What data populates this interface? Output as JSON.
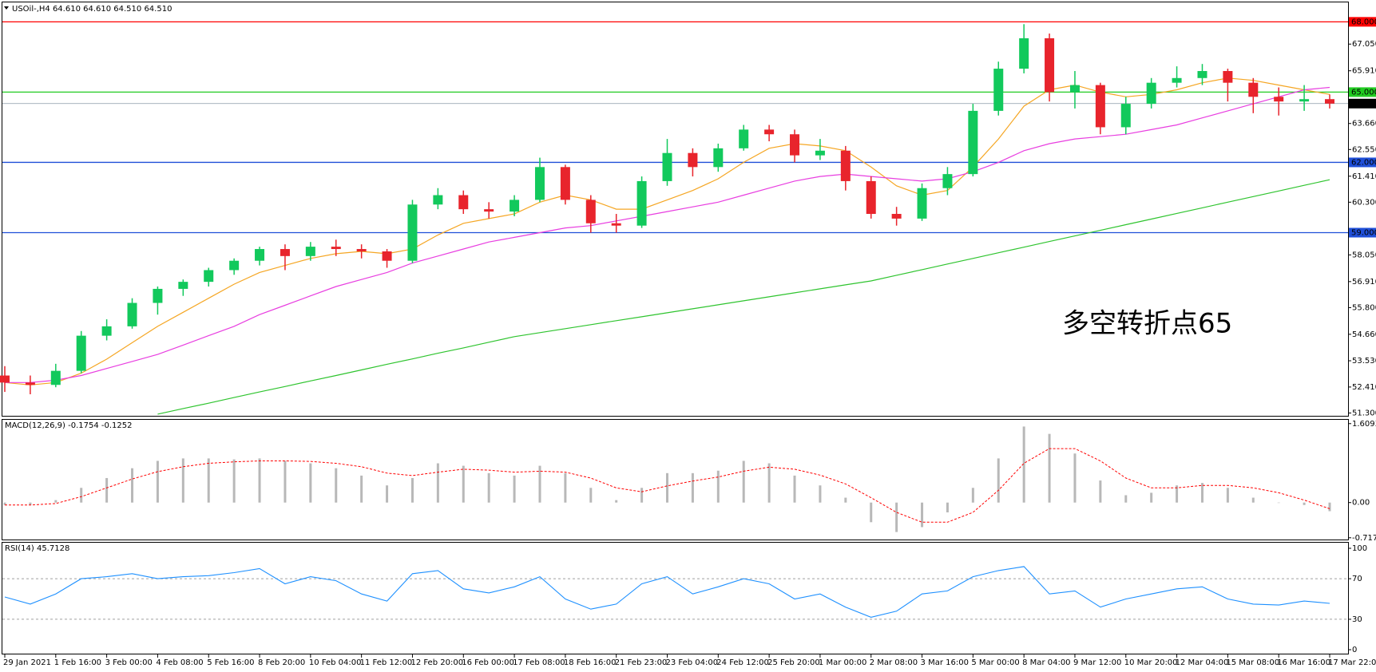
{
  "chart_data": [
    {
      "type": "candlestick",
      "title": "USOil-,H4  64.610 64.610 64.510 64.510",
      "annotation": "多空转折点65",
      "annotation_color": "#e8242c",
      "categories": [
        "29 Jan 2021",
        null,
        "1 Feb 16:00",
        null,
        "3 Feb 00:00",
        null,
        "4 Feb 08:00",
        null,
        "5 Feb 16:00",
        null,
        "8 Feb 20:00",
        null,
        "10 Feb 04:00",
        null,
        "11 Feb 12:00",
        null,
        "12 Feb 20:00",
        null,
        "16 Feb 00:00",
        null,
        "17 Feb 08:00",
        null,
        "18 Feb 16:00",
        null,
        "21 Feb 23:00",
        null,
        "23 Feb 04:00",
        null,
        "24 Feb 12:00",
        null,
        "25 Feb 20:00",
        null,
        "1 Mar 00:00",
        null,
        "2 Mar 08:00",
        null,
        "3 Mar 16:00",
        null,
        "5 Mar 00:00",
        null,
        "8 Mar 04:00",
        null,
        "9 Mar 12:00",
        null,
        "10 Mar 20:00",
        null,
        "12 Mar 04:00",
        null,
        "15 Mar 08:00",
        null,
        "16 Mar 16:00",
        null,
        "17 Mar 22:00"
      ],
      "open": [
        52.9,
        52.6,
        52.5,
        53.1,
        54.6,
        55.0,
        56.0,
        56.6,
        56.9,
        57.4,
        57.8,
        58.3,
        58.0,
        58.4,
        58.3,
        58.2,
        57.8,
        60.2,
        60.6,
        60.0,
        59.9,
        60.4,
        61.8,
        60.4,
        59.4,
        59.3,
        61.2,
        62.4,
        61.8,
        62.6,
        63.4,
        63.2,
        62.3,
        62.5,
        61.2,
        59.8,
        59.6,
        60.9,
        61.5,
        64.2,
        66.0,
        67.3,
        65.0,
        65.3,
        63.5,
        64.5,
        65.4,
        65.6,
        65.9,
        65.4,
        64.8,
        64.6,
        64.7
      ],
      "high": [
        53.3,
        52.9,
        53.4,
        54.8,
        55.3,
        56.2,
        56.7,
        57.0,
        57.5,
        57.9,
        58.4,
        58.5,
        58.6,
        58.7,
        58.5,
        58.3,
        60.4,
        60.9,
        60.8,
        60.3,
        60.6,
        62.2,
        61.9,
        60.6,
        59.8,
        61.4,
        63.0,
        62.6,
        62.8,
        63.6,
        63.6,
        63.4,
        63.0,
        62.7,
        61.4,
        60.1,
        61.1,
        61.8,
        64.5,
        66.3,
        67.9,
        67.5,
        65.9,
        65.4,
        64.8,
        65.6,
        66.1,
        66.2,
        66.0,
        65.6,
        65.2,
        65.3,
        64.9
      ],
      "low": [
        52.2,
        52.1,
        52.4,
        53.0,
        54.4,
        54.9,
        55.5,
        56.3,
        56.7,
        57.2,
        57.6,
        57.4,
        57.8,
        58.0,
        57.9,
        57.5,
        57.7,
        60.0,
        59.8,
        59.6,
        59.7,
        60.3,
        60.2,
        59.0,
        59.0,
        59.2,
        61.0,
        61.4,
        61.6,
        62.5,
        62.9,
        62.0,
        62.1,
        60.8,
        59.6,
        59.3,
        59.5,
        60.6,
        61.4,
        64.0,
        65.8,
        64.6,
        64.3,
        63.2,
        63.2,
        64.3,
        65.2,
        65.3,
        64.6,
        64.1,
        64.0,
        64.2,
        64.3
      ],
      "close": [
        52.6,
        52.5,
        53.1,
        54.6,
        55.0,
        56.0,
        56.6,
        56.9,
        57.4,
        57.8,
        58.3,
        58.0,
        58.4,
        58.3,
        58.2,
        57.8,
        60.2,
        60.6,
        60.0,
        59.9,
        60.4,
        61.8,
        60.4,
        59.4,
        59.3,
        61.2,
        62.4,
        61.8,
        62.6,
        63.4,
        63.2,
        62.3,
        62.5,
        61.2,
        59.8,
        59.6,
        60.9,
        61.5,
        64.2,
        66.0,
        67.3,
        65.0,
        65.3,
        63.5,
        64.5,
        65.4,
        65.6,
        65.9,
        65.4,
        64.8,
        64.6,
        64.7,
        64.51
      ],
      "up_color": "#12c95c",
      "down_color": "#e8242c",
      "series": [
        {
          "color": "#f5a623",
          "values": [
            52.6,
            52.5,
            52.6,
            53.0,
            53.6,
            54.3,
            55.0,
            55.6,
            56.2,
            56.8,
            57.3,
            57.6,
            57.9,
            58.1,
            58.2,
            58.1,
            58.3,
            58.9,
            59.4,
            59.6,
            59.8,
            60.3,
            60.6,
            60.4,
            60.0,
            60.0,
            60.4,
            60.8,
            61.3,
            62.0,
            62.6,
            62.8,
            62.7,
            62.5,
            61.8,
            61.0,
            60.6,
            60.8,
            61.8,
            63.0,
            64.4,
            65.1,
            65.3,
            65.0,
            64.8,
            64.9,
            65.1,
            65.4,
            65.6,
            65.5,
            65.3,
            65.1,
            64.9
          ]
        },
        {
          "color": "#e83ee0",
          "values": [
            52.6,
            52.6,
            52.7,
            52.9,
            53.2,
            53.5,
            53.8,
            54.2,
            54.6,
            55.0,
            55.5,
            55.9,
            56.3,
            56.7,
            57.0,
            57.3,
            57.7,
            58.0,
            58.3,
            58.6,
            58.8,
            59.0,
            59.2,
            59.3,
            59.5,
            59.7,
            59.9,
            60.1,
            60.3,
            60.6,
            60.9,
            61.2,
            61.4,
            61.5,
            61.4,
            61.3,
            61.2,
            61.3,
            61.6,
            62.0,
            62.5,
            62.8,
            63.0,
            63.1,
            63.2,
            63.4,
            63.6,
            63.9,
            64.2,
            64.5,
            64.8,
            65.1,
            65.2
          ]
        },
        {
          "color": "#2fc42f",
          "values": [
            null,
            null,
            null,
            null,
            null,
            null,
            51.25,
            51.49,
            51.72,
            51.96,
            52.2,
            52.43,
            52.67,
            52.9,
            53.14,
            53.38,
            53.61,
            53.85,
            54.08,
            54.32,
            54.56,
            54.73,
            54.9,
            55.07,
            55.24,
            55.41,
            55.58,
            55.75,
            55.92,
            56.09,
            56.26,
            56.43,
            56.6,
            56.77,
            56.94,
            57.18,
            57.42,
            57.66,
            57.9,
            58.14,
            58.38,
            58.62,
            58.86,
            59.1,
            59.34,
            59.58,
            59.82,
            60.06,
            60.3,
            60.54,
            60.78,
            61.02,
            61.26
          ]
        }
      ],
      "ylim": [
        51.18,
        68.83
      ],
      "yticks": [
        {
          "value": 67.05,
          "label": "67.050"
        },
        {
          "value": 65.91,
          "label": "65.910"
        },
        {
          "value": 63.66,
          "label": "63.660"
        },
        {
          "value": 62.55,
          "label": "62.550"
        },
        {
          "value": 61.41,
          "label": "61.410"
        },
        {
          "value": 60.3,
          "label": "60.300"
        },
        {
          "value": 58.05,
          "label": "58.050"
        },
        {
          "value": 56.91,
          "label": "56.910"
        },
        {
          "value": 55.8,
          "label": "55.800"
        },
        {
          "value": 54.66,
          "label": "54.660"
        },
        {
          "value": 53.53,
          "label": "53.530"
        },
        {
          "value": 52.41,
          "label": "52.410"
        },
        {
          "value": 51.3,
          "label": "51.300"
        }
      ],
      "levels": [
        {
          "value": 68,
          "label": "68.000",
          "color": "#ff0000"
        },
        {
          "value": 65,
          "label": "65.000",
          "color": "#22cc22"
        },
        {
          "value": 62,
          "label": "62.000",
          "color": "#1f4fd8"
        },
        {
          "value": 59,
          "label": "59.000",
          "color": "#1f4fd8"
        }
      ],
      "price_line": {
        "value": 64.51,
        "label": "64.510",
        "color": "#8a9aa8"
      }
    },
    {
      "type": "macd",
      "title": "MACD(12,26,9) -0.1754 -0.1252",
      "histogram": [
        -0.05,
        -0.05,
        0.05,
        0.3,
        0.5,
        0.7,
        0.85,
        0.9,
        0.9,
        0.88,
        0.9,
        0.85,
        0.8,
        0.7,
        0.55,
        0.35,
        0.5,
        0.8,
        0.75,
        0.6,
        0.55,
        0.75,
        0.6,
        0.3,
        0.05,
        0.3,
        0.6,
        0.6,
        0.65,
        0.85,
        0.8,
        0.55,
        0.35,
        0.1,
        -0.4,
        -0.6,
        -0.5,
        -0.2,
        0.3,
        0.9,
        1.55,
        1.4,
        1.0,
        0.45,
        0.15,
        0.2,
        0.35,
        0.4,
        0.3,
        0.1,
        0.0,
        -0.05,
        -0.1754
      ],
      "signal": [
        -0.05,
        -0.05,
        -0.02,
        0.12,
        0.3,
        0.48,
        0.63,
        0.73,
        0.8,
        0.83,
        0.85,
        0.85,
        0.84,
        0.8,
        0.73,
        0.6,
        0.55,
        0.62,
        0.68,
        0.66,
        0.62,
        0.64,
        0.62,
        0.5,
        0.3,
        0.22,
        0.34,
        0.44,
        0.52,
        0.64,
        0.72,
        0.68,
        0.56,
        0.38,
        0.1,
        -0.2,
        -0.4,
        -0.4,
        -0.2,
        0.25,
        0.8,
        1.1,
        1.1,
        0.85,
        0.5,
        0.3,
        0.3,
        0.35,
        0.35,
        0.3,
        0.2,
        0.05,
        -0.1252
      ],
      "histogram_color": "#b8b8b8",
      "signal_color": "#ff0000",
      "ylim": [
        -0.753,
        1.687
      ],
      "yticks": [
        1.6093,
        {
          "value": 0,
          "label": "0.00"
        },
        -0.7172
      ]
    },
    {
      "type": "rsi",
      "title": "RSI(14) 45.7128",
      "values": [
        52,
        45,
        55,
        70,
        72,
        75,
        70,
        72,
        73,
        76,
        80,
        65,
        72,
        68,
        55,
        48,
        75,
        78,
        60,
        56,
        62,
        72,
        50,
        40,
        45,
        65,
        72,
        55,
        62,
        70,
        65,
        50,
        55,
        42,
        32,
        38,
        55,
        58,
        72,
        78,
        82,
        55,
        58,
        42,
        50,
        55,
        60,
        62,
        50,
        45,
        44,
        48,
        45.7128
      ],
      "color": "#1e90ff",
      "levels": [
        30,
        70
      ],
      "ylim": [
        -3.9,
        105.5
      ],
      "yticks": [
        0,
        30,
        70,
        100
      ]
    }
  ]
}
